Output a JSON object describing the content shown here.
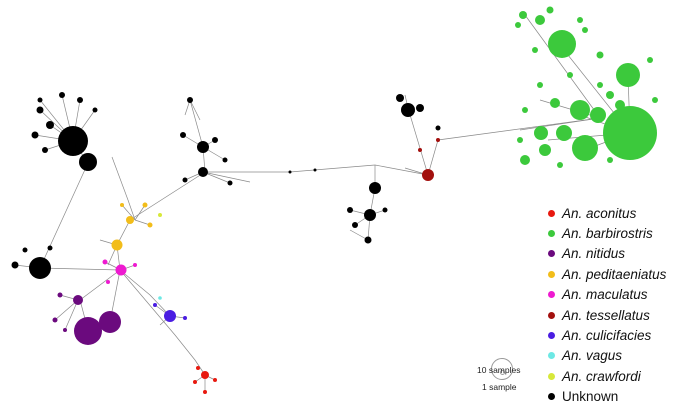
{
  "legend": [
    {
      "prefix": "An.",
      "name": "aconitus",
      "color": "#e8190f"
    },
    {
      "prefix": "An.",
      "name": "barbirostris",
      "color": "#3cc93c"
    },
    {
      "prefix": "An.",
      "name": "nitidus",
      "color": "#6b0a7e"
    },
    {
      "prefix": "An.",
      "name": "peditaeniatus",
      "color": "#f2bd1a"
    },
    {
      "prefix": "An.",
      "name": "maculatus",
      "color": "#ee1ad0"
    },
    {
      "prefix": "An.",
      "name": "tessellatus",
      "color": "#a3100e"
    },
    {
      "prefix": "An.",
      "name": "culicifacies",
      "color": "#4a1de2"
    },
    {
      "prefix": "An.",
      "name": "vagus",
      "color": "#6de8e4"
    },
    {
      "prefix": "An.",
      "name": "crawfordi",
      "color": "#d7e83a"
    },
    {
      "prefix": "",
      "name": "Unknown",
      "color": "#000000"
    }
  ],
  "scale": {
    "large_label": "10 samples",
    "small_label": "1 sample"
  }
}
